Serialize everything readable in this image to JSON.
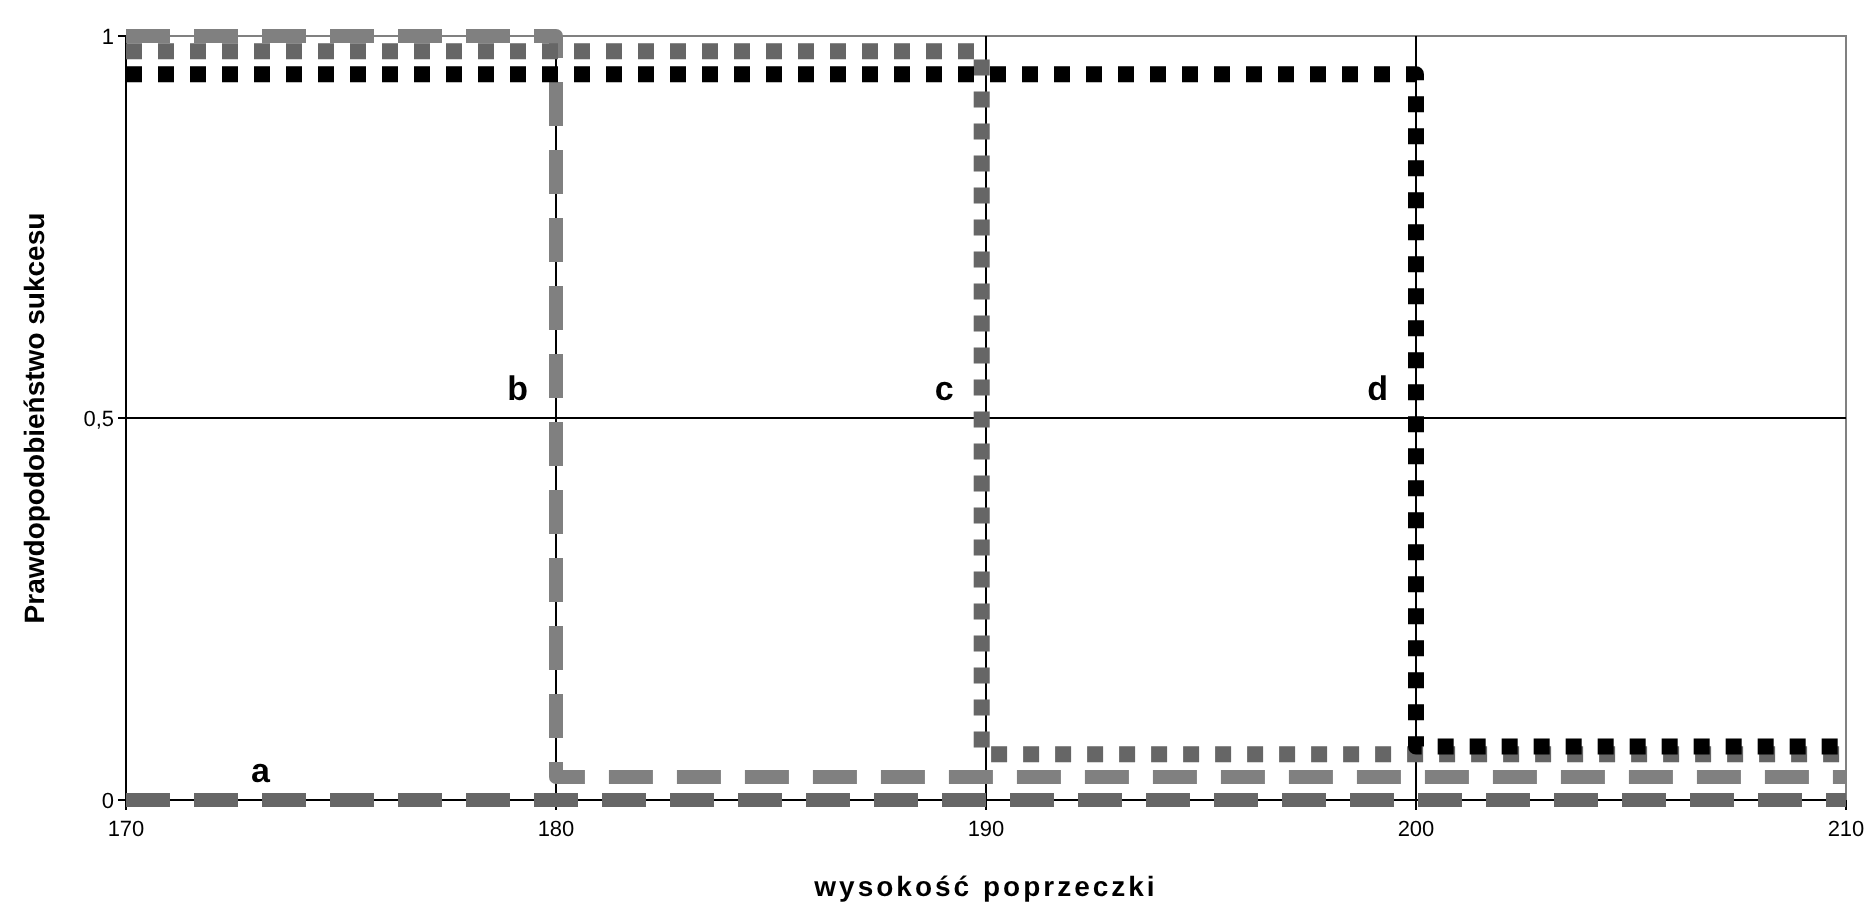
{
  "chart_data": {
    "type": "line",
    "xlabel": "wysokość poprzeczki",
    "ylabel": "Prawdopodobieństwo sukcesu",
    "xlim": [
      170,
      210
    ],
    "xticks": [
      170,
      180,
      190,
      200,
      210
    ],
    "ylim": [
      0,
      1
    ],
    "yticks": [
      {
        "value": 0,
        "label": "0"
      },
      {
        "value": 0.5,
        "label": "0,5"
      },
      {
        "value": 1,
        "label": "1"
      }
    ],
    "grid": true,
    "series": [
      {
        "color": "#666666",
        "line_style": "dashed",
        "x": [
          170,
          210
        ],
        "values": [
          0,
          0
        ]
      },
      {
        "color": "#808080",
        "line_style": "dashed",
        "x": [
          170,
          180,
          180,
          210
        ],
        "values": [
          1,
          1,
          0.03,
          0.03
        ]
      },
      {
        "color": "#666666",
        "line_style": "dotted",
        "x": [
          170,
          189.9,
          189.9,
          210
        ],
        "values": [
          0.98,
          0.98,
          0.06,
          0.06
        ]
      },
      {
        "color": "#000000",
        "line_style": "dotted",
        "x": [
          170,
          200,
          200,
          210
        ],
        "values": [
          0.95,
          0.95,
          0.07,
          0.07
        ]
      }
    ],
    "annotations": [
      {
        "text": "a",
        "x": 174,
        "y": 0
      },
      {
        "text": "b",
        "x": 180,
        "y": 0.5
      },
      {
        "text": "c",
        "x": 189.9,
        "y": 0.5
      },
      {
        "text": "d",
        "x": 200,
        "y": 0.5
      }
    ]
  }
}
